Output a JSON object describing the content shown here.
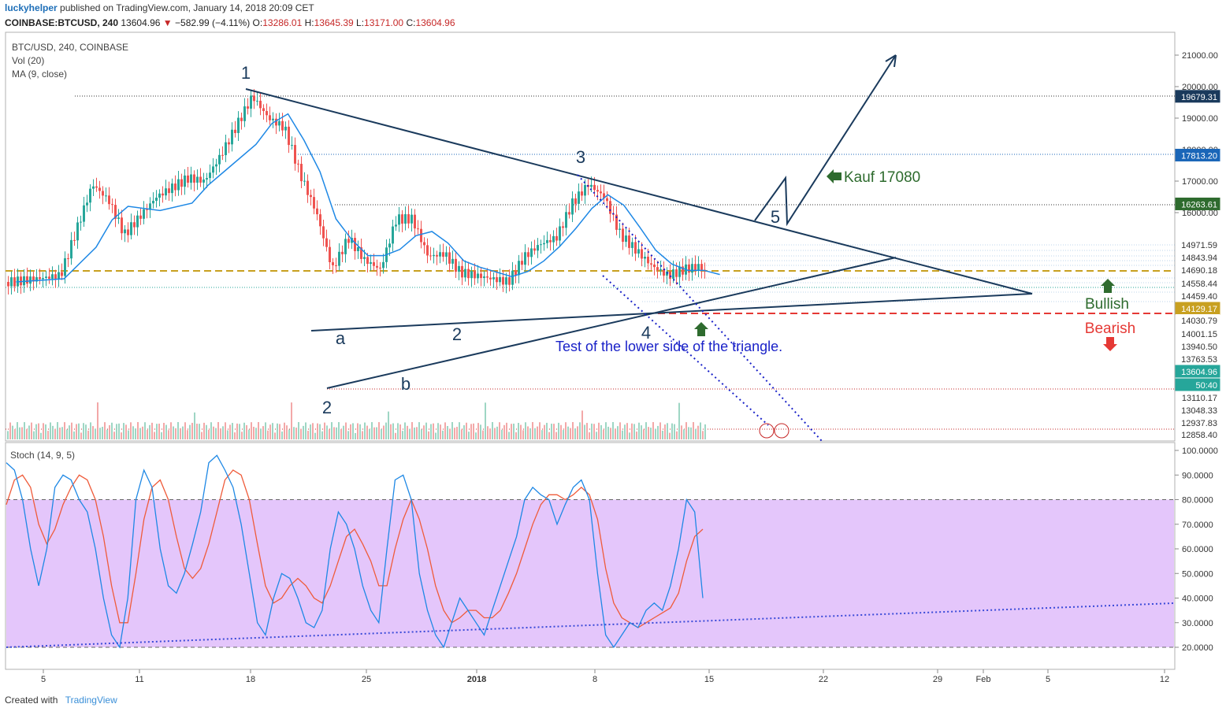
{
  "header": {
    "author": "luckyhelper",
    "published": "published on TradingView.com, January 14, 2018 20:09 CET"
  },
  "symbol_bar": {
    "symbol": "COINBASE:BTCUSD, 240",
    "last": "13604.96",
    "change": "−582.99 (−4.11%)",
    "o_label": "O:",
    "o": "13286.01",
    "h_label": "H:",
    "h": "13645.39",
    "l_label": "L:",
    "l": "13171.00",
    "c_label": "C:",
    "c": "13604.96"
  },
  "legend": {
    "main": "BTC/USD, 240, COINBASE",
    "vol": "Vol (20)",
    "ma": "MA (9, close)",
    "stoch": "Stoch (14, 9, 5)"
  },
  "footer": {
    "created": "Created with",
    "brand": "TradingView"
  },
  "colors": {
    "up": "#26a69a",
    "down": "#ef5350",
    "ma": "#1e88e5",
    "triangle": "#1a3a5c",
    "stoch_k": "#1e88e5",
    "stoch_d": "#ef5b3a",
    "stoch_band": "#e4c6fb",
    "annotation_blue": "#1a22c8",
    "green": "#2e6b2e",
    "red": "#e53935"
  },
  "chart_data": [
    {
      "type": "candlestick",
      "title": "BTC/USD, 240, COINBASE",
      "x_ticks": [
        "5",
        "11",
        "18",
        "25",
        "2018",
        "8",
        "15",
        "22",
        "29",
        "Feb",
        "5",
        "12"
      ],
      "y_ticks": [
        "21000.00",
        "20000.00",
        "19000.00",
        "18000.00",
        "17000.00",
        "16000.00"
      ],
      "ylim": [
        12700,
        21500
      ],
      "price_levels": [
        "19679.31",
        "17813.20",
        "16263.61",
        "14971.59",
        "14843.94",
        "14690.18",
        "14558.44",
        "14459.40",
        "14129.17",
        "14030.79",
        "14001.15",
        "13940.50",
        "13763.53",
        "13604.96",
        "50:40",
        "13110.17",
        "13048.33",
        "12937.83",
        "12858.40"
      ],
      "approx_close_path": [
        {
          "x": "Dec 2",
          "y": 13800
        },
        {
          "x": "Dec 5",
          "y": 14000
        },
        {
          "x": "Dec 7",
          "y": 16900
        },
        {
          "x": "Dec 8",
          "y": 16400
        },
        {
          "x": "Dec 9",
          "y": 15300
        },
        {
          "x": "Dec 11",
          "y": 16500
        },
        {
          "x": "Dec 13",
          "y": 17100
        },
        {
          "x": "Dec 14",
          "y": 17000
        },
        {
          "x": "Dec 15",
          "y": 17800
        },
        {
          "x": "Dec 17",
          "y": 19700
        },
        {
          "x": "Dec 18",
          "y": 19000
        },
        {
          "x": "Dec 19",
          "y": 18700
        },
        {
          "x": "Dec 20",
          "y": 17200
        },
        {
          "x": "Dec 21",
          "y": 16000
        },
        {
          "x": "Dec 22",
          "y": 14200
        },
        {
          "x": "Dec 23",
          "y": 15200
        },
        {
          "x": "Dec 24",
          "y": 14500
        },
        {
          "x": "Dec 25",
          "y": 14200
        },
        {
          "x": "Dec 26",
          "y": 15800
        },
        {
          "x": "Dec 27",
          "y": 15800
        },
        {
          "x": "Dec 28",
          "y": 14600
        },
        {
          "x": "Dec 29",
          "y": 14700
        },
        {
          "x": "Dec 30",
          "y": 14100
        },
        {
          "x": "Dec 31",
          "y": 14000
        },
        {
          "x": "Jan 1",
          "y": 13800
        },
        {
          "x": "Jan 2",
          "y": 14600
        },
        {
          "x": "Jan 3",
          "y": 15000
        },
        {
          "x": "Jan 4",
          "y": 15200
        },
        {
          "x": "Jan 5",
          "y": 16300
        },
        {
          "x": "Jan 6",
          "y": 16900
        },
        {
          "x": "Jan 7",
          "y": 16500
        },
        {
          "x": "Jan 8",
          "y": 15300
        },
        {
          "x": "Jan 9",
          "y": 14800
        },
        {
          "x": "Jan 10",
          "y": 14300
        },
        {
          "x": "Jan 11",
          "y": 14000
        },
        {
          "x": "Jan 12",
          "y": 14200
        },
        {
          "x": "Jan 13",
          "y": 14300
        },
        {
          "x": "Jan 14",
          "y": 13605
        }
      ],
      "annotations": {
        "wave_labels": [
          "1",
          "2",
          "3",
          "4",
          "5",
          "a",
          "b",
          "2"
        ],
        "kauf": "Kauf 17080",
        "bullish": "Bullish",
        "bearish": "Bearish",
        "note": "Test of the lower side of the triangle."
      }
    },
    {
      "type": "line",
      "title": "Stoch (14, 9, 5)",
      "y_ticks": [
        "100.0000",
        "90.0000",
        "80.0000",
        "70.0000",
        "60.0000",
        "50.0000",
        "40.0000",
        "30.0000",
        "20.0000"
      ],
      "ylim": [
        20,
        100
      ],
      "band": [
        20,
        80
      ],
      "series": [
        {
          "values": [
            95,
            92,
            80,
            60,
            45,
            60,
            85,
            90,
            88,
            80,
            75,
            60,
            40,
            25,
            20,
            40,
            80,
            92,
            85,
            60,
            45,
            42,
            50,
            62,
            75,
            95,
            98,
            92,
            85,
            70,
            50,
            30,
            25,
            40,
            50,
            48,
            40,
            30,
            28,
            35,
            60,
            75,
            70,
            60,
            45,
            35,
            30,
            60,
            88,
            90,
            80,
            50,
            35,
            25,
            20,
            30,
            40,
            35,
            30,
            25,
            35,
            45,
            55,
            65,
            80,
            85,
            82,
            80,
            70,
            78,
            85,
            88,
            80,
            50,
            25,
            20,
            25,
            30,
            28,
            35,
            38,
            35,
            45,
            60,
            80,
            75,
            40
          ]
        },
        {
          "values": [
            78,
            88,
            90,
            85,
            70,
            62,
            68,
            78,
            85,
            90,
            88,
            80,
            65,
            45,
            30,
            30,
            50,
            72,
            85,
            88,
            80,
            65,
            52,
            48,
            52,
            62,
            75,
            88,
            92,
            90,
            80,
            62,
            45,
            38,
            40,
            45,
            48,
            45,
            40,
            38,
            45,
            55,
            65,
            68,
            62,
            55,
            45,
            45,
            60,
            72,
            80,
            72,
            60,
            45,
            35,
            30,
            32,
            35,
            35,
            32,
            32,
            35,
            42,
            50,
            60,
            70,
            78,
            82,
            82,
            80,
            82,
            85,
            82,
            72,
            52,
            38,
            32,
            30,
            28,
            30,
            32,
            34,
            36,
            42,
            55,
            65,
            68
          ]
        }
      ]
    }
  ]
}
